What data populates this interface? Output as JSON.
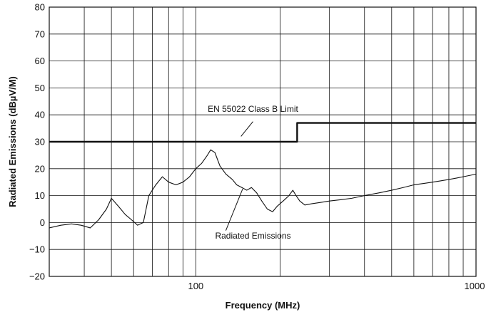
{
  "chart_data": {
    "type": "line",
    "xlabel": "Frequency (MHz)",
    "ylabel": "Radiated Emissions (dBµV/M)",
    "xscale": "log",
    "xlim": [
      30,
      1000
    ],
    "ylim": [
      -20,
      80
    ],
    "grid": true,
    "x_tick_labels": [
      {
        "value": 100,
        "label": "100"
      },
      {
        "value": 1000,
        "label": "1000"
      }
    ],
    "y_ticks": [
      -20,
      -10,
      0,
      10,
      20,
      30,
      40,
      50,
      60,
      70,
      80
    ],
    "y_tick_labels": [
      "−20",
      "−10",
      "0",
      "10",
      "20",
      "30",
      "40",
      "50",
      "60",
      "70",
      "80"
    ],
    "series": [
      {
        "name": "EN 55022 Class B Limit",
        "color": "#111111",
        "x": [
          30,
          230,
          230,
          1000
        ],
        "y": [
          30,
          30,
          37,
          37
        ]
      },
      {
        "name": "Radiated Emissions",
        "color": "#111111",
        "x": [
          30,
          33,
          36,
          39,
          42,
          45,
          48,
          50,
          53,
          56,
          59,
          62,
          65,
          68,
          72,
          76,
          80,
          85,
          90,
          95,
          100,
          105,
          110,
          113,
          117,
          122,
          128,
          135,
          140,
          146,
          152,
          158,
          165,
          172,
          180,
          188,
          195,
          205,
          215,
          222,
          228,
          235,
          245,
          260,
          280,
          300,
          330,
          360,
          400,
          450,
          500,
          550,
          600,
          650,
          700,
          750,
          800,
          850,
          900,
          950,
          1000
        ],
        "y": [
          -2,
          -1,
          -0.5,
          -1,
          -2,
          1,
          5,
          9,
          6,
          3,
          1,
          -1,
          0,
          10,
          14,
          17,
          15,
          14,
          15,
          17,
          20,
          22,
          25,
          27,
          26,
          21,
          18,
          16,
          14,
          13,
          12,
          13,
          11,
          8,
          5,
          4,
          6,
          8,
          10,
          12,
          10,
          8,
          6.5,
          7,
          7.5,
          8,
          8.5,
          9,
          10,
          11,
          12,
          13,
          14,
          14.5,
          15,
          15.5,
          16,
          16.5,
          17,
          17.5,
          18
        ]
      }
    ],
    "annotations": [
      {
        "text": "EN 55022 Class B Limit",
        "target_series": 0
      },
      {
        "text": "Radiated Emissions",
        "target_series": 1
      }
    ]
  }
}
